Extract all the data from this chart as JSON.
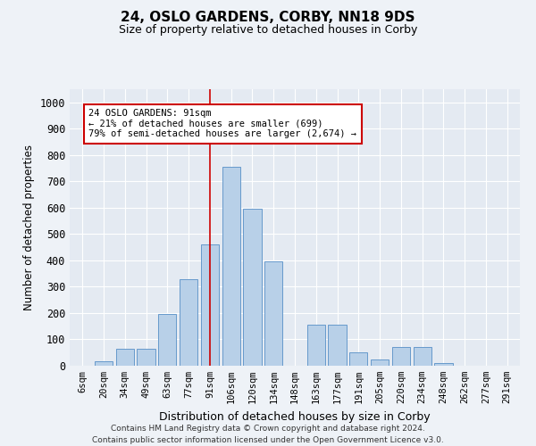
{
  "title1": "24, OSLO GARDENS, CORBY, NN18 9DS",
  "title2": "Size of property relative to detached houses in Corby",
  "xlabel": "Distribution of detached houses by size in Corby",
  "ylabel": "Number of detached properties",
  "categories": [
    "6sqm",
    "20sqm",
    "34sqm",
    "49sqm",
    "63sqm",
    "77sqm",
    "91sqm",
    "106sqm",
    "120sqm",
    "134sqm",
    "148sqm",
    "163sqm",
    "177sqm",
    "191sqm",
    "205sqm",
    "220sqm",
    "234sqm",
    "248sqm",
    "262sqm",
    "277sqm",
    "291sqm"
  ],
  "values": [
    0,
    18,
    65,
    65,
    195,
    330,
    460,
    755,
    595,
    395,
    0,
    155,
    155,
    50,
    25,
    70,
    70,
    10,
    0,
    0,
    0
  ],
  "bar_color": "#b8d0e8",
  "bar_edge_color": "#6699cc",
  "highlight_index": 6,
  "vline_color": "#cc0000",
  "annotation_line1": "24 OSLO GARDENS: 91sqm",
  "annotation_line2": "← 21% of detached houses are smaller (699)",
  "annotation_line3": "79% of semi-detached houses are larger (2,674) →",
  "annotation_box_color": "#ffffff",
  "annotation_box_edge": "#cc0000",
  "ylim": [
    0,
    1050
  ],
  "yticks": [
    0,
    100,
    200,
    300,
    400,
    500,
    600,
    700,
    800,
    900,
    1000
  ],
  "footer1": "Contains HM Land Registry data © Crown copyright and database right 2024.",
  "footer2": "Contains public sector information licensed under the Open Government Licence v3.0.",
  "bg_color": "#eef2f7",
  "plot_bg_color": "#e4eaf2"
}
